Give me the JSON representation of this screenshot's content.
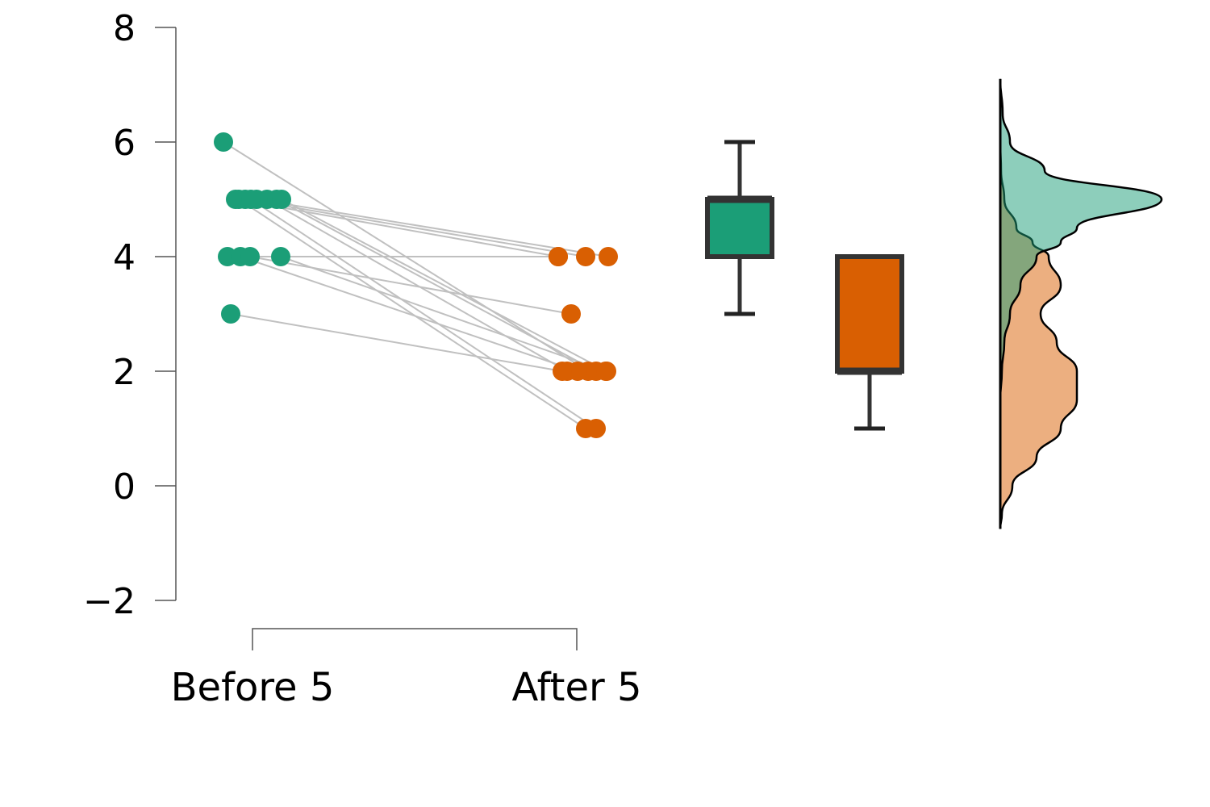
{
  "chart_data": {
    "type": "raincloud-paired",
    "categories": [
      "Before 5",
      "After 5"
    ],
    "ylim": [
      -2,
      8
    ],
    "yticks": [
      -2,
      0,
      2,
      4,
      6,
      8
    ],
    "ytick_labels": [
      "−2",
      "0",
      "2",
      "4",
      "6",
      "8"
    ],
    "grid": false,
    "colors": {
      "before": "#1b9e77",
      "after": "#d95f02",
      "line": "#c0c0c0",
      "box_stroke": "#333333"
    },
    "pairs": [
      [
        6,
        2
      ],
      [
        5,
        4
      ],
      [
        5,
        4
      ],
      [
        5,
        4
      ],
      [
        5,
        2
      ],
      [
        5,
        2
      ],
      [
        5,
        1
      ],
      [
        5,
        1
      ],
      [
        5,
        2
      ],
      [
        4,
        4
      ],
      [
        4,
        2
      ],
      [
        4,
        3
      ],
      [
        4,
        2
      ],
      [
        3,
        2
      ]
    ],
    "boxplots": [
      {
        "name": "Before 5",
        "min": 3,
        "q1": 4,
        "median": 5,
        "q3": 5,
        "max": 6
      },
      {
        "name": "After 5",
        "min": 1,
        "q1": 2,
        "median": 2,
        "q3": 4,
        "max": 4
      }
    ],
    "density": {
      "y": [
        -0.75,
        -0.5,
        0,
        0.5,
        1,
        1.5,
        2,
        2.5,
        3,
        3.5,
        4,
        4.25,
        4.5,
        5,
        5.5,
        6,
        6.5,
        7.1
      ],
      "before": [
        0,
        0,
        0,
        0,
        0,
        0,
        0.02,
        0.05,
        0.12,
        0.25,
        0.45,
        0.75,
        0.95,
        2.0,
        0.55,
        0.12,
        0.03,
        0
      ],
      "after": [
        0,
        0.02,
        0.15,
        0.45,
        0.75,
        0.95,
        0.95,
        0.7,
        0.5,
        0.75,
        0.6,
        0.4,
        0.2,
        0.05,
        0.01,
        0,
        0,
        0
      ]
    }
  }
}
